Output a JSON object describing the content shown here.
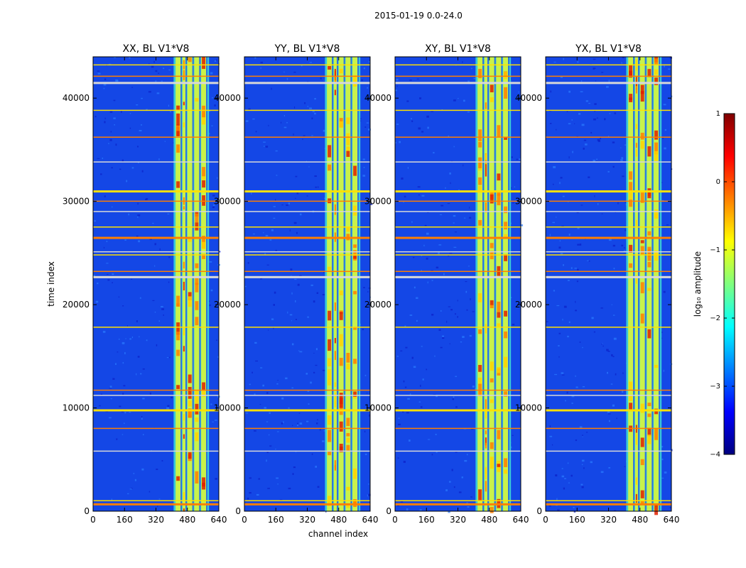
{
  "figure": {
    "suptitle": "2015-01-19 0.0-24.0"
  },
  "chart_data": {
    "type": "heatmap",
    "xlabel": "channel index",
    "ylabel": "time index",
    "xlim": [
      0,
      640
    ],
    "ylim": [
      0,
      44000
    ],
    "xticks": [
      0,
      160,
      320,
      480,
      640
    ],
    "yticks": [
      0,
      10000,
      20000,
      30000,
      40000
    ],
    "panels": [
      {
        "title": "XX, BL V1*V8",
        "ytick_labels": [
          "0",
          "10000",
          "20000",
          "30000",
          "40000"
        ]
      },
      {
        "title": "YY, BL V1*V8",
        "ytick_labels": [
          "0",
          "10000",
          "20000",
          "30000",
          "40000"
        ]
      },
      {
        "title": "XY, BL V1*V8",
        "ytick_labels": [
          "0",
          "10000",
          "20000",
          "30000",
          "40000"
        ]
      },
      {
        "title": "YX, BL V1*V8",
        "ytick_labels": [
          "0",
          "10000",
          "20000",
          "30000",
          "40000"
        ]
      }
    ],
    "colorbar": {
      "label": "log₁₀ amplitude",
      "range": [
        -4,
        1
      ],
      "ticks": [
        1,
        0,
        -1,
        -2,
        -3,
        -4
      ],
      "tick_labels": [
        "1",
        "0",
        "−1",
        "−2",
        "−3",
        "−4"
      ],
      "colors": [
        "#00007f",
        "#0000ff",
        "#007fff",
        "#00ffff",
        "#7fff7f",
        "#ffff00",
        "#ff7f00",
        "#ff0000",
        "#7f0000"
      ]
    },
    "features": {
      "bright_channel_band": [
        410,
        590
      ],
      "bright_channel_stripes": [
        [
          420,
          445
        ],
        [
          455,
          470
        ],
        [
          480,
          505
        ],
        [
          515,
          540
        ],
        [
          550,
          575
        ]
      ],
      "rfi_time_rows": [
        700,
        1000,
        5800,
        8000,
        9800,
        11200,
        11700,
        17800,
        22700,
        23200,
        24800,
        25100,
        26500,
        27500,
        29000,
        30000,
        31000,
        33800,
        36200,
        38800,
        41500,
        42100,
        43200
      ]
    }
  }
}
